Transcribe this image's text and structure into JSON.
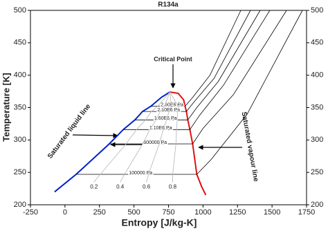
{
  "chart_data": {
    "type": "line",
    "title": "R134a",
    "x_label": "Entropy [J/kg-K]",
    "y_label": "Temperature [K]",
    "xlim": [
      -250,
      1750
    ],
    "xticks": [
      -250,
      0,
      250,
      500,
      750,
      1000,
      1250,
      1500,
      1750
    ],
    "ylim": [
      200,
      500
    ],
    "yticks": [
      200,
      250,
      300,
      350,
      400,
      450,
      500
    ],
    "y2lim": [
      200,
      500
    ],
    "y2ticks": [
      200,
      250,
      300,
      350,
      400,
      450,
      500
    ],
    "grid": false,
    "annotations": [
      "Critical Point"
    ],
    "series": [
      {
        "name": "Saturated liquid line",
        "color": "#0022cc",
        "x": [
          -75,
          81,
          321,
          422,
          507,
          562,
          622,
          700,
          760
        ],
        "values": [
          220,
          247,
          294,
          316,
          331,
          344,
          352,
          366,
          374
        ]
      },
      {
        "name": "Saturated vapour line",
        "color": "#e01010",
        "x": [
          760,
          820,
          860,
          870,
          880,
          890,
          905,
          925,
          955,
          990,
          1020
        ],
        "values": [
          374,
          372,
          362,
          352,
          344,
          331,
          316,
          294,
          247,
          228,
          215
        ]
      },
      {
        "name": "2.60E6 Pa",
        "color": "#000000",
        "x": [
          622,
          870,
          930,
          1050,
          1274
        ],
        "values": [
          352,
          352,
          367,
          400,
          500
        ]
      },
      {
        "name": "2.10E6 Pa",
        "color": "#000000",
        "x": [
          562,
          880,
          940,
          1080,
          1344
        ],
        "values": [
          344,
          344,
          360,
          395,
          500
        ]
      },
      {
        "name": "1.60E6 Pa",
        "color": "#000000",
        "x": [
          507,
          890,
          955,
          1110,
          1414
        ],
        "values": [
          331,
          331,
          350,
          390,
          500
        ]
      },
      {
        "name": "1.10E6 Pa",
        "color": "#000000",
        "x": [
          422,
          905,
          975,
          1150,
          1484
        ],
        "values": [
          316,
          316,
          338,
          385,
          500
        ]
      },
      {
        "name": "600000 Pa",
        "color": "#000000",
        "x": [
          321,
          925,
          1000,
          1220,
          1605
        ],
        "values": [
          294,
          294,
          318,
          370,
          500
        ]
      },
      {
        "name": "100000 Pa",
        "color": "#000000",
        "x": [
          81,
          955,
          1060,
          1320,
          1720
        ],
        "values": [
          247,
          247,
          270,
          340,
          500
        ]
      },
      {
        "name": "0.2",
        "color": "#bbbbbb",
        "x": [
          760,
          672,
          626,
          584,
          519,
          442,
          256,
          210
        ],
        "values": [
          374,
          352,
          344,
          331,
          316,
          294,
          247,
          235
        ]
      },
      {
        "name": "0.4",
        "color": "#bbbbbb",
        "x": [
          760,
          721,
          689,
          660,
          615,
          563,
          431,
          400
        ],
        "values": [
          374,
          352,
          344,
          331,
          316,
          294,
          247,
          235
        ]
      },
      {
        "name": "0.6",
        "color": "#bbbbbb",
        "x": [
          760,
          771,
          753,
          737,
          712,
          683,
          605,
          590
        ],
        "values": [
          374,
          352,
          344,
          331,
          316,
          294,
          247,
          235
        ]
      },
      {
        "name": "0.8",
        "color": "#bbbbbb",
        "x": [
          760,
          820,
          816,
          813,
          808,
          804,
          780,
          780
        ],
        "values": [
          374,
          352,
          344,
          331,
          316,
          294,
          247,
          235
        ]
      }
    ]
  }
}
